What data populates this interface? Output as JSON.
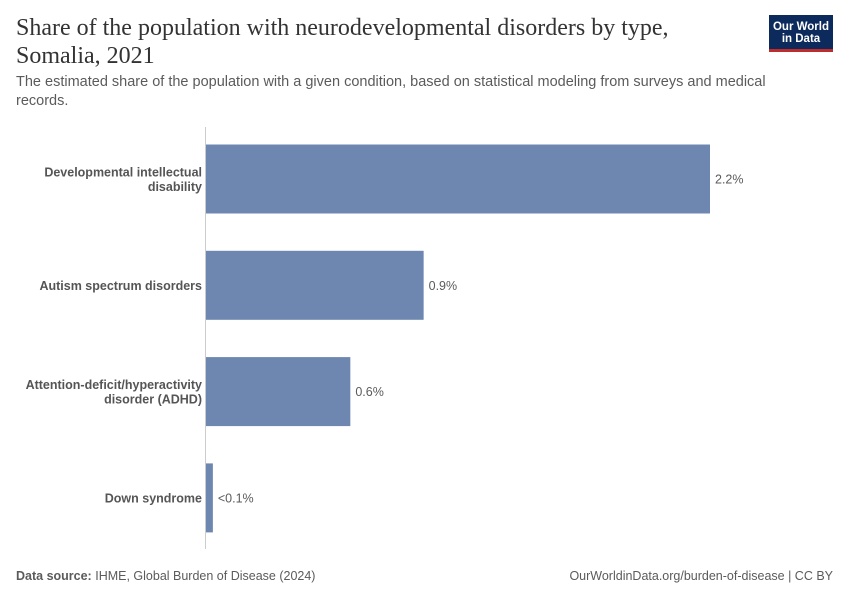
{
  "header": {
    "title": "Share of the population with neurodevelopmental disorders by type, Somalia, 2021",
    "subtitle": "The estimated share of the population with a given condition, based on statistical modeling from surveys and medical records."
  },
  "logo": {
    "line1": "Our World",
    "line2": "in Data",
    "bg_color": "#0c2b5c",
    "accent_color": "#be2c2c"
  },
  "footer": {
    "source_label": "Data source:",
    "source_text": "IHME, Global Burden of Disease (2024)",
    "right_text": "OurWorldinData.org/burden-of-disease | CC BY"
  },
  "chart_data": {
    "type": "bar",
    "orientation": "horizontal",
    "categories": [
      "Developmental intellectual disability",
      "Autism spectrum disorders",
      "Attention-deficit/hyperactivity disorder (ADHD)",
      "Down syndrome"
    ],
    "values": [
      2.2,
      0.95,
      0.63,
      0.03
    ],
    "value_labels": [
      "2.2%",
      "0.9%",
      "0.6%",
      "<0.1%"
    ],
    "bar_color": "#6d87b0",
    "xlim": [
      0,
      2.2
    ],
    "grid": false
  }
}
